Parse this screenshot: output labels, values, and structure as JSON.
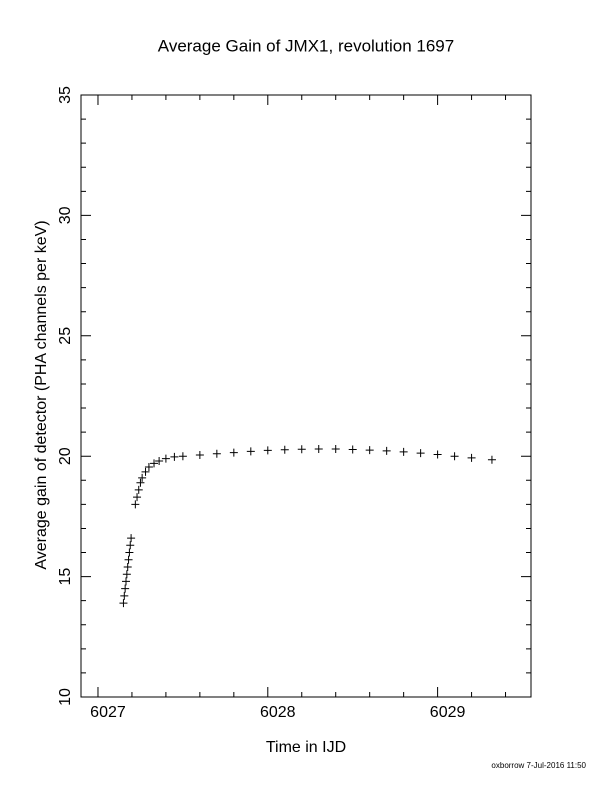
{
  "chart_data": {
    "type": "scatter",
    "title": "Average Gain of JMX1, revolution 1697",
    "x_label": "Time in IJD",
    "y_label": "Average gain of detector (PHA channels per keV)",
    "footer": "oxborrow  7-Jul-2016 11:50",
    "x": [
      6027.15,
      6027.155,
      6027.16,
      6027.165,
      6027.17,
      6027.175,
      6027.18,
      6027.185,
      6027.19,
      6027.195,
      6027.22,
      6027.23,
      6027.24,
      6027.25,
      6027.26,
      6027.28,
      6027.3,
      6027.33,
      6027.36,
      6027.4,
      6027.45,
      6027.5,
      6027.6,
      6027.7,
      6027.8,
      6027.9,
      6028.0,
      6028.1,
      6028.2,
      6028.3,
      6028.4,
      6028.5,
      6028.6,
      6028.7,
      6028.8,
      6028.9,
      6029.0,
      6029.1,
      6029.2,
      6029.32
    ],
    "values": [
      13.9,
      14.2,
      14.5,
      14.8,
      15.1,
      15.4,
      15.7,
      16.0,
      16.3,
      16.6,
      18.0,
      18.3,
      18.6,
      18.9,
      19.1,
      19.35,
      19.55,
      19.7,
      19.8,
      19.9,
      19.97,
      20.0,
      20.05,
      20.1,
      20.15,
      20.2,
      20.24,
      20.27,
      20.29,
      20.3,
      20.3,
      20.28,
      20.25,
      20.22,
      20.18,
      20.13,
      20.07,
      20.0,
      19.93,
      19.85
    ],
    "color": "#000000",
    "xlim": [
      6026.9,
      6029.55
    ],
    "ylim": [
      10,
      35
    ],
    "xticks": [
      6027,
      6028,
      6029
    ],
    "yticks": [
      10,
      15,
      20,
      25,
      30,
      35
    ],
    "xminorticks": [
      6027.2,
      6027.4,
      6027.6,
      6027.8,
      6028.2,
      6028.4,
      6028.6,
      6028.8,
      6029.2,
      6029.4
    ],
    "yminorticks": [
      11,
      12,
      13,
      14,
      16,
      17,
      18,
      19,
      21,
      22,
      23,
      24,
      26,
      27,
      28,
      29,
      31,
      32,
      33,
      34
    ],
    "grid": false
  }
}
